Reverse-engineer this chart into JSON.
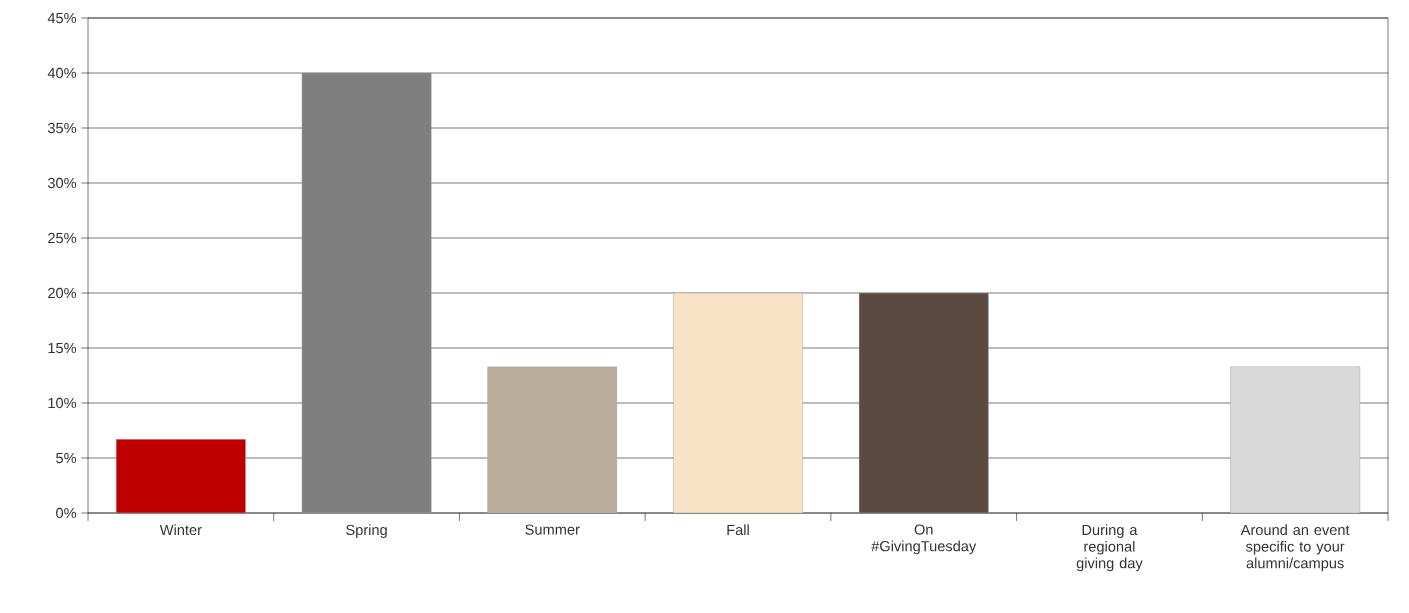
{
  "chart_data": {
    "type": "bar",
    "categories": [
      "Winter",
      "Spring",
      "Summer",
      "Fall",
      "On #GivingTuesday",
      "During a regional giving day",
      "Around an event specific to your alumni/campus"
    ],
    "values": [
      6.7,
      40,
      13.3,
      20,
      20,
      0,
      13.3
    ],
    "colors": [
      "#c00000",
      "#7f7f7f",
      "#b9ae9c",
      "#f9e2c6",
      "#5a4a40",
      null,
      "#d9d9d9"
    ],
    "ylim": [
      0,
      45
    ],
    "yticks": [
      {
        "value": 0,
        "label": "0%"
      },
      {
        "value": 5,
        "label": "5%"
      },
      {
        "value": 10,
        "label": "10%"
      },
      {
        "value": 15,
        "label": "15%"
      },
      {
        "value": 20,
        "label": "20%"
      },
      {
        "value": 25,
        "label": "25%"
      },
      {
        "value": 30,
        "label": "30%"
      },
      {
        "value": 35,
        "label": "35%"
      },
      {
        "value": 40,
        "label": "40%"
      },
      {
        "value": 45,
        "label": "45%"
      }
    ],
    "grid": "y"
  }
}
